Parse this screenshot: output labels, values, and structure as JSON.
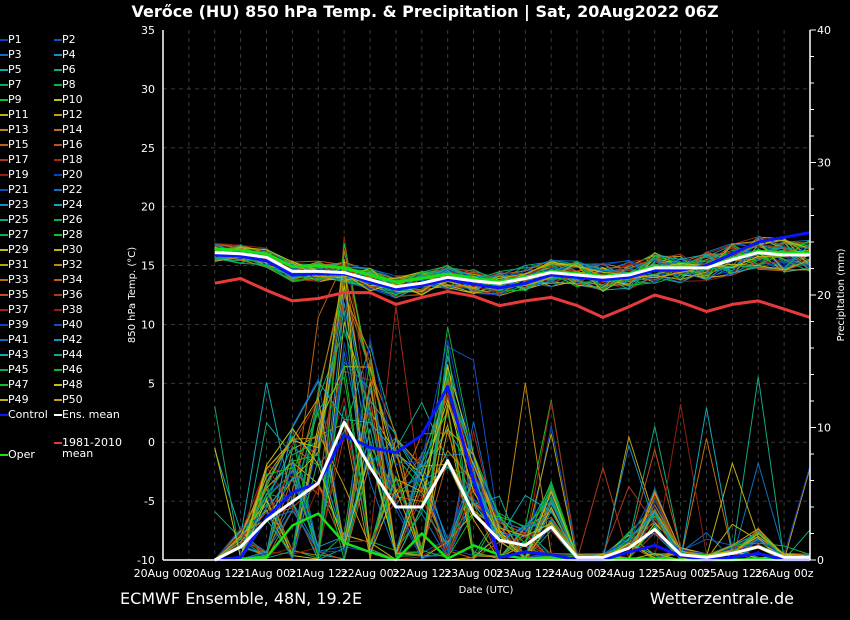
{
  "title": "Verőce  (HU)  850 hPa Temp. & Precipitation | Sat, 20Aug2022 06Z",
  "footer": {
    "left": "ECMWF Ensemble, 48N, 19.2E",
    "right": "Wetterzentrale.de"
  },
  "legend": {
    "members": [
      "P1",
      "P2",
      "P3",
      "P4",
      "P5",
      "P6",
      "P7",
      "P8",
      "P9",
      "P10",
      "P11",
      "P12",
      "P13",
      "P14",
      "P15",
      "P16",
      "P17",
      "P18",
      "P19",
      "P20",
      "P21",
      "P22",
      "P23",
      "P24",
      "P25",
      "P26",
      "P27",
      "P28",
      "P29",
      "P30",
      "P31",
      "P32",
      "P33",
      "P34",
      "P35",
      "P36",
      "P37",
      "P38",
      "P39",
      "P40",
      "P41",
      "P42",
      "P43",
      "P44",
      "P45",
      "P46",
      "P47",
      "P48",
      "P49",
      "P50"
    ],
    "member_palette": [
      "#1040c0",
      "#1050c0",
      "#1070c0",
      "#1090c8",
      "#10a8b8",
      "#10a888",
      "#10a860",
      "#10b040",
      "#10c020",
      "#c0c010",
      "#c0b010",
      "#c0a010",
      "#c08810",
      "#c07010",
      "#c06010",
      "#c05018",
      "#b03818",
      "#a02818",
      "#902010"
    ],
    "control": "Control",
    "ens_mean": "Ens. mean",
    "climate": "1981-2010 mean",
    "oper": "Oper"
  },
  "colors": {
    "control": "#0a14ff",
    "ens_mean": "#ffffff",
    "climate": "#e83a3a",
    "oper": "#18e018",
    "grid": "#555555"
  },
  "chart_data": {
    "type": "line",
    "xlabel": "Date (UTC)",
    "ylabel_left": "850 hPa Temp. (°C)",
    "ylabel_right": "Precipitation (mm)",
    "ylim_left": [
      -10,
      35
    ],
    "ylim_right": [
      0,
      40
    ],
    "yticks_left": [
      -10,
      -5,
      0,
      5,
      10,
      15,
      20,
      25,
      30,
      35
    ],
    "yticks_right": [
      0,
      10,
      20,
      30,
      40
    ],
    "xtick_labels": [
      "20Aug 00z",
      "20Aug 12z",
      "21Aug 00z",
      "21Aug 12z",
      "22Aug 00z",
      "22Aug 12z",
      "23Aug 00z",
      "23Aug 12z",
      "24Aug 00z",
      "24Aug 12z",
      "25Aug 00z",
      "25Aug 12z",
      "26Aug 00z"
    ],
    "grid": true,
    "x": [
      "20Aug 12z",
      "20Aug 18z",
      "21Aug 00z",
      "21Aug 06z",
      "21Aug 12z",
      "21Aug 18z",
      "22Aug 00z",
      "22Aug 06z",
      "22Aug 12z",
      "22Aug 18z",
      "23Aug 00z",
      "23Aug 06z",
      "23Aug 12z",
      "23Aug 18z",
      "24Aug 00z",
      "24Aug 06z",
      "24Aug 12z",
      "24Aug 18z",
      "25Aug 00z",
      "25Aug 06z",
      "25Aug 12z",
      "25Aug 18z",
      "26Aug 00z",
      "26Aug 06z"
    ],
    "temperature": {
      "ens_mean": [
        16.1,
        16.0,
        15.7,
        14.5,
        14.5,
        14.4,
        13.8,
        13.2,
        13.5,
        14.0,
        13.7,
        13.5,
        13.9,
        14.4,
        14.2,
        14.0,
        14.2,
        14.8,
        14.8,
        14.8,
        15.5,
        16.1,
        15.9,
        15.9
      ],
      "control": [
        15.9,
        15.8,
        15.4,
        14.2,
        14.3,
        14.3,
        13.6,
        13.0,
        13.3,
        13.8,
        13.4,
        13.1,
        13.5,
        14.2,
        14.0,
        13.8,
        14.0,
        14.6,
        14.6,
        15.0,
        16.0,
        17.0,
        17.4,
        17.8
      ],
      "oper": [
        16.4,
        16.3,
        16.0,
        14.9,
        15.0,
        14.8,
        14.2,
        13.6,
        13.9,
        14.3,
        13.9,
        13.6,
        14.0,
        14.5,
        14.3,
        14.1,
        14.3,
        14.9,
        14.9,
        14.9,
        15.6,
        16.2,
        16.1,
        16.0
      ],
      "climate_mean": [
        13.5,
        13.9,
        12.9,
        12.0,
        12.2,
        12.7,
        12.7,
        11.7,
        12.3,
        12.8,
        12.4,
        11.6,
        12.0,
        12.3,
        11.6,
        10.6,
        11.5,
        12.5,
        11.9,
        11.1,
        11.7,
        12.0,
        11.3,
        10.6
      ]
    },
    "precipitation": {
      "ens_mean": [
        0,
        1.0,
        3.0,
        4.4,
        5.8,
        10.4,
        7.0,
        4.0,
        4.0,
        7.5,
        3.5,
        1.5,
        1.1,
        2.5,
        0.2,
        0.2,
        0.9,
        2.3,
        0.4,
        0.2,
        0.5,
        1.0,
        0.2,
        0.2
      ],
      "control": [
        0,
        0.2,
        3.2,
        5.1,
        5.8,
        9.4,
        8.5,
        8.1,
        9.4,
        13.1,
        6.0,
        0.2,
        0.6,
        0.4,
        0,
        0,
        0.6,
        1.1,
        0.3,
        0,
        0.2,
        0.5,
        0,
        0
      ],
      "oper": [
        0,
        0.1,
        0.2,
        2.6,
        3.5,
        1.3,
        0.6,
        0,
        2.0,
        0.1,
        1.1,
        0.4,
        0.1,
        0.2,
        0,
        0,
        0.1,
        0.1,
        0,
        0,
        0,
        0.1,
        0,
        0
      ]
    }
  }
}
